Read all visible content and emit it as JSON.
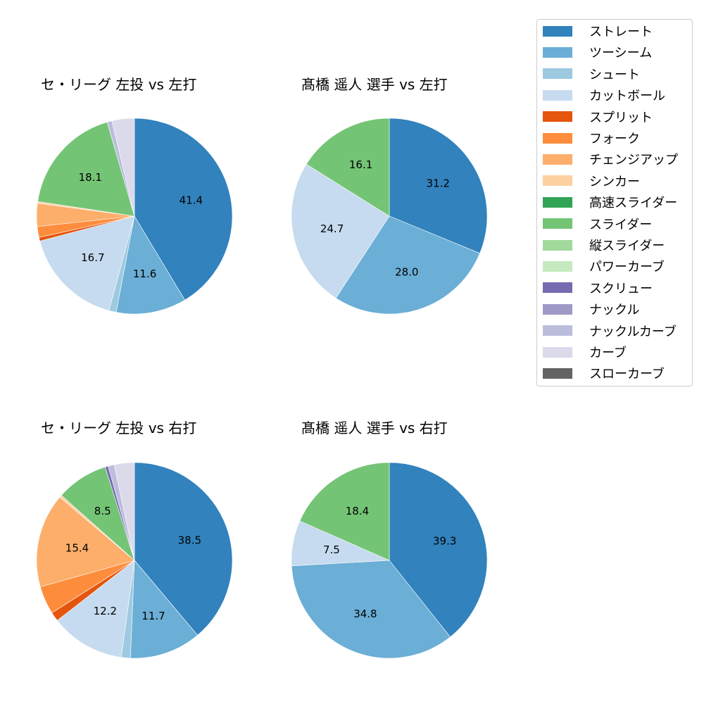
{
  "chart_data": [
    {
      "type": "pie",
      "title": "セ・リーグ 左投 vs 左打",
      "startangle": 90,
      "direction": "clockwise",
      "categories": [
        "ストレート",
        "ツーシーム",
        "シュート",
        "カットボール",
        "スプリット",
        "フォーク",
        "チェンジアップ",
        "シンカー",
        "スライダー",
        "ナックルカーブ",
        "カーブ"
      ],
      "values": [
        41.4,
        11.6,
        1.2,
        16.7,
        0.6,
        1.8,
        3.8,
        0.3,
        18.1,
        0.8,
        3.7
      ],
      "labels": [
        "41.4",
        "11.6",
        "",
        "16.7",
        "",
        "",
        "",
        "",
        "18.1",
        "",
        ""
      ]
    },
    {
      "type": "pie",
      "title": "髙橋 遥人 選手 vs 左打",
      "startangle": 90,
      "direction": "clockwise",
      "categories": [
        "ストレート",
        "ツーシーム",
        "カットボール",
        "スライダー"
      ],
      "values": [
        31.2,
        28.0,
        24.7,
        16.1
      ],
      "labels": [
        "31.2",
        "28.0",
        "24.7",
        "16.1"
      ]
    },
    {
      "type": "pie",
      "title": "セ・リーグ 左投 vs 右打",
      "startangle": 90,
      "direction": "clockwise",
      "categories": [
        "ストレート",
        "ツーシーム",
        "シュート",
        "カットボール",
        "スプリット",
        "フォーク",
        "チェンジアップ",
        "シンカー",
        "スライダー",
        "スクリュー",
        "ナックルカーブ",
        "カーブ"
      ],
      "values": [
        38.5,
        11.7,
        1.5,
        12.2,
        1.5,
        4.6,
        15.4,
        0.4,
        8.5,
        0.5,
        1.0,
        3.3
      ],
      "labels": [
        "38.5",
        "11.7",
        "",
        "12.2",
        "",
        "",
        "15.4",
        "",
        "8.5",
        "",
        "",
        ""
      ]
    },
    {
      "type": "pie",
      "title": "髙橋 遥人 選手 vs 右打",
      "startangle": 90,
      "direction": "clockwise",
      "categories": [
        "ストレート",
        "ツーシーム",
        "カットボール",
        "スライダー"
      ],
      "values": [
        39.3,
        34.8,
        7.5,
        18.4
      ],
      "labels": [
        "39.3",
        "34.8",
        "7.5",
        "18.4"
      ]
    }
  ],
  "legend": {
    "position": "upper right",
    "items": [
      {
        "label": "ストレート",
        "color": "#3182bd"
      },
      {
        "label": "ツーシーム",
        "color": "#6baed6"
      },
      {
        "label": "シュート",
        "color": "#9ecae1"
      },
      {
        "label": "カットボール",
        "color": "#c6dbef"
      },
      {
        "label": "スプリット",
        "color": "#e6550d"
      },
      {
        "label": "フォーク",
        "color": "#fd8d3c"
      },
      {
        "label": "チェンジアップ",
        "color": "#fdae6b"
      },
      {
        "label": "シンカー",
        "color": "#fdd0a2"
      },
      {
        "label": "高速スライダー",
        "color": "#31a354"
      },
      {
        "label": "スライダー",
        "color": "#74c476"
      },
      {
        "label": "縦スライダー",
        "color": "#a1d99b"
      },
      {
        "label": "パワーカーブ",
        "color": "#c7e9c0"
      },
      {
        "label": "スクリュー",
        "color": "#756bb1"
      },
      {
        "label": "ナックル",
        "color": "#9e9ac8"
      },
      {
        "label": "ナックルカーブ",
        "color": "#bcbddc"
      },
      {
        "label": "カーブ",
        "color": "#dadaeb"
      },
      {
        "label": "スローカーブ",
        "color": "#636363"
      }
    ]
  },
  "titles": {
    "top_left": "セ・リーグ 左投 vs 左打",
    "top_right": "髙橋 遥人 選手 vs 左打",
    "bottom_left": "セ・リーグ 左投 vs 右打",
    "bottom_right": "髙橋 遥人 選手 vs 右打"
  }
}
